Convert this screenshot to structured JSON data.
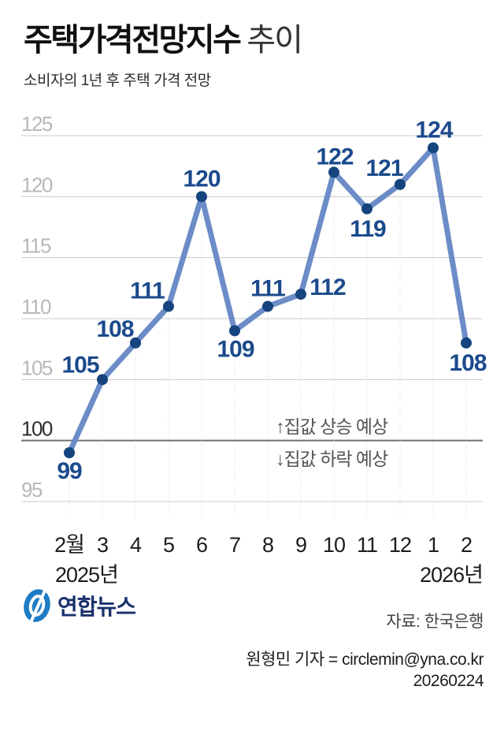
{
  "header": {
    "title_main": "주택가격전망지수",
    "title_suffix": "추이",
    "subtitle": "소비자의 1년 후 주택 가격 전망"
  },
  "chart_data": {
    "type": "line",
    "title": "주택가격전망지수 추이",
    "categories": [
      "2월",
      "3",
      "4",
      "5",
      "6",
      "7",
      "8",
      "9",
      "10",
      "11",
      "12",
      "1",
      "2"
    ],
    "values": [
      99,
      105,
      108,
      111,
      120,
      109,
      111,
      112,
      122,
      119,
      121,
      124,
      108
    ],
    "year_labels": [
      {
        "text": "2025년",
        "align": "left"
      },
      {
        "text": "2026년",
        "align": "right"
      }
    ],
    "ylim": [
      95,
      125
    ],
    "yticks": [
      95,
      100,
      105,
      110,
      115,
      120,
      125
    ],
    "emphasized_ytick": 100,
    "grid": true,
    "legend": "none",
    "annotations": [
      {
        "text": "↑집값 상승 예상",
        "position": "above-100-line"
      },
      {
        "text": "↓집값 하락 예상",
        "position": "below-100-line"
      }
    ],
    "colors": {
      "line": "#6b8cc7",
      "marker": "#15447e",
      "value_label": "#1b4a8c",
      "gridline": "#c8c8c8",
      "emphasized_gridline": "#707070",
      "drop_line": "#d2d2d2",
      "ytick_label": "#b8b8b8",
      "emphasized_ytick_label": "#2d2d2d",
      "xtick_label": "#1c1c1c",
      "annotation_text": "#555555"
    }
  },
  "footer": {
    "brand": "연합뉴스",
    "brand_color": "#19306b",
    "logo_color": "#1e7bc4",
    "source": "자료: 한국은행",
    "credit": "원형민 기자 = circlemin@yna.co.kr",
    "date": "20260224"
  }
}
